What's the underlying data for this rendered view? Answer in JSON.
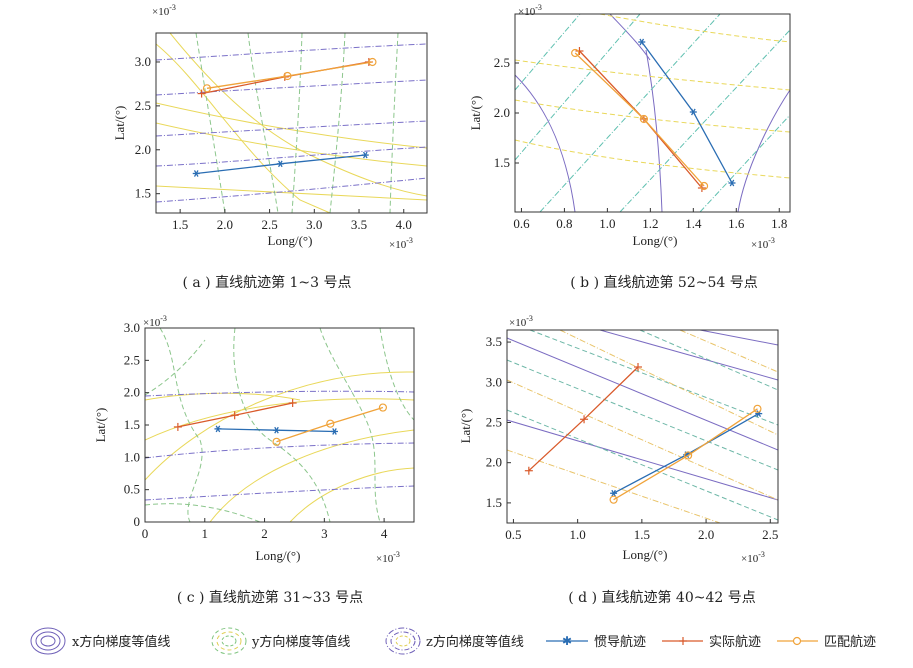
{
  "chart_data": [
    {
      "type": "line",
      "caption": "( a ) 直线航迹第 1~3 号点",
      "xlabel": "Long/(°)",
      "ylabel": "Lat/(°)",
      "x_exponent": "×10-3",
      "y_exponent": "×10-3",
      "xlim": [
        1.23,
        4.26
      ],
      "ylim": [
        1.28,
        3.33
      ],
      "xticks": [
        1.5,
        2.0,
        2.5,
        3.0,
        3.5,
        4.0
      ],
      "xtick_labels": [
        "1.5",
        "2.0",
        "2.5",
        "3.0",
        "3.5",
        "4.0"
      ],
      "yticks": [
        1.5,
        2.0,
        2.5,
        3.0
      ],
      "ytick_labels": [
        "1.5",
        "2.0",
        "2.5",
        "3.0"
      ],
      "series": [
        {
          "name": "惯导航迹",
          "x": [
            1.68,
            2.62,
            3.57
          ],
          "y": [
            1.73,
            1.84,
            1.94
          ]
        },
        {
          "name": "实际航迹",
          "x": [
            1.74,
            2.67,
            3.61
          ],
          "y": [
            2.64,
            2.83,
            3.0
          ]
        },
        {
          "name": "匹配航迹",
          "x": [
            1.8,
            2.7,
            3.65
          ],
          "y": [
            2.7,
            2.84,
            3.0
          ]
        }
      ]
    },
    {
      "type": "line",
      "caption": "( b ) 直线航迹第 52~54 号点",
      "xlabel": "Long/(°)",
      "ylabel": "Lat/(°)",
      "x_exponent": "×10-3",
      "y_exponent": "×10-3",
      "xlim": [
        0.57,
        1.85
      ],
      "ylim": [
        1.01,
        2.99
      ],
      "xticks": [
        0.6,
        0.8,
        1.0,
        1.2,
        1.4,
        1.6,
        1.8
      ],
      "xtick_labels": [
        "0.6",
        "0.8",
        "1.0",
        "1.2",
        "1.4",
        "1.6",
        "1.8"
      ],
      "yticks": [
        1.5,
        2.0,
        2.5
      ],
      "ytick_labels": [
        "1.5",
        "2.0",
        "2.5"
      ],
      "series": [
        {
          "name": "惯导航迹",
          "x": [
            1.16,
            1.4,
            1.58
          ],
          "y": [
            2.71,
            2.01,
            1.3
          ]
        },
        {
          "name": "实际航迹",
          "x": [
            0.87,
            1.17,
            1.44
          ],
          "y": [
            2.62,
            1.94,
            1.25
          ]
        },
        {
          "name": "匹配航迹",
          "x": [
            0.85,
            1.17,
            1.45
          ],
          "y": [
            2.6,
            1.94,
            1.27
          ]
        }
      ]
    },
    {
      "type": "line",
      "caption": "( c ) 直线航迹第 31~33 号点",
      "xlabel": "Long/(°)",
      "ylabel": "Lat/(°)",
      "x_exponent": "×10-3",
      "y_exponent": "×10-3",
      "xlim": [
        0,
        4.5
      ],
      "ylim": [
        0,
        3.0
      ],
      "xticks": [
        0,
        1,
        2,
        3,
        4
      ],
      "xtick_labels": [
        "0",
        "1",
        "2",
        "3",
        "4"
      ],
      "yticks": [
        0,
        0.5,
        1.0,
        1.5,
        2.0,
        2.5,
        3.0
      ],
      "ytick_labels": [
        "0",
        "0.5",
        "1.0",
        "1.5",
        "2.0",
        "2.5",
        "3.0"
      ],
      "series": [
        {
          "name": "惯导航迹",
          "x": [
            1.22,
            2.2,
            3.17
          ],
          "y": [
            1.44,
            1.42,
            1.4
          ]
        },
        {
          "name": "实际航迹",
          "x": [
            0.55,
            1.5,
            2.47
          ],
          "y": [
            1.47,
            1.65,
            1.84
          ]
        },
        {
          "name": "匹配航迹",
          "x": [
            2.2,
            3.1,
            3.98
          ],
          "y": [
            1.24,
            1.52,
            1.77
          ]
        }
      ]
    },
    {
      "type": "line",
      "caption": "( d ) 直线航迹第 40~42 号点",
      "xlabel": "Long/(°)",
      "ylabel": "Lat/(°)",
      "x_exponent": "×10-3",
      "y_exponent": "×10-3",
      "xlim": [
        0.45,
        2.56
      ],
      "ylim": [
        1.25,
        3.65
      ],
      "xticks": [
        0.5,
        1.0,
        1.5,
        2.0,
        2.5
      ],
      "xtick_labels": [
        "0.5",
        "1.0",
        "1.5",
        "2.0",
        "2.5"
      ],
      "yticks": [
        1.5,
        2.0,
        2.5,
        3.0,
        3.5
      ],
      "ytick_labels": [
        "1.5",
        "2.0",
        "2.5",
        "3.0",
        "3.5"
      ],
      "series": [
        {
          "name": "惯导航迹",
          "x": [
            1.28,
            1.85,
            2.41
          ],
          "y": [
            1.62,
            2.1,
            2.61
          ]
        },
        {
          "name": "实际航迹",
          "x": [
            0.62,
            1.05,
            1.47
          ],
          "y": [
            1.9,
            2.54,
            3.19
          ]
        },
        {
          "name": "匹配航迹",
          "x": [
            1.28,
            1.86,
            2.4
          ],
          "y": [
            1.54,
            2.09,
            2.67
          ]
        }
      ]
    }
  ],
  "legend": {
    "items": [
      {
        "label": "x方向梯度等值线",
        "style": "contour",
        "color": "#6f60b8",
        "dash": ""
      },
      {
        "label": "y方向梯度等值线",
        "style": "contour",
        "color": "#7fc47f",
        "dash": "4,3"
      },
      {
        "label": "z方向梯度等值线",
        "style": "contour",
        "color": "#6f60b8",
        "dash": "6,2,1,2"
      },
      {
        "label": "惯导航迹",
        "style": "line",
        "color": "#2a6db3",
        "marker": "star"
      },
      {
        "label": "实际航迹",
        "style": "line",
        "color": "#d95a2b",
        "marker": "plus"
      },
      {
        "label": "匹配航迹",
        "style": "line",
        "color": "#f0a33a",
        "marker": "circle"
      }
    ]
  },
  "colors": {
    "ins": "#2a6db3",
    "actual": "#d95a2b",
    "matched": "#f0a33a",
    "contour_x": "#7b6cc2",
    "contour_y": "#8cc68c",
    "contour_z": "#7a70c8",
    "contour_yellow": "#e9d85a"
  }
}
